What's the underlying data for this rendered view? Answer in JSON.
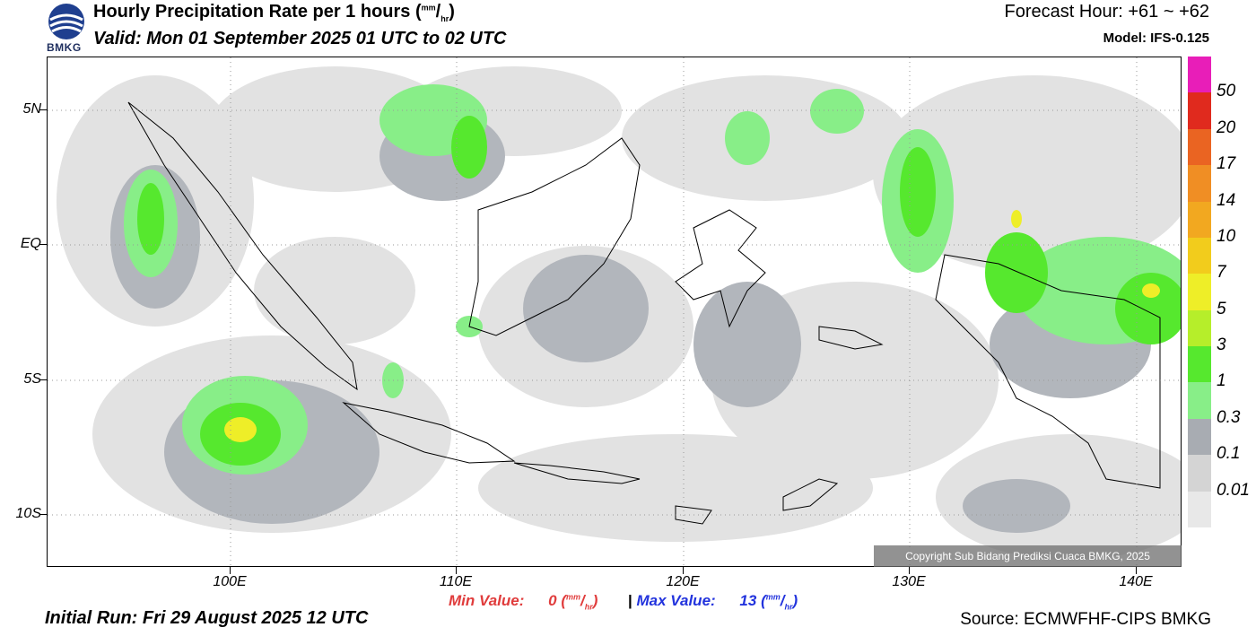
{
  "header": {
    "title_main": "Hourly Precipitation Rate per 1 hours (",
    "title_unit_num": "mm",
    "title_unit_sep": "/",
    "title_unit_den": "hr",
    "title_close": ")",
    "valid": "Valid: Mon 01 September 2025 01 UTC to 02 UTC",
    "forecast_hour": "Forecast Hour: +61 ~ +62",
    "model": "Model: IFS-0.125",
    "logo_text": "BMKG"
  },
  "axes": {
    "lat_labels": [
      "5N",
      "EQ",
      "5S",
      "10S"
    ],
    "lon_labels": [
      "100E",
      "110E",
      "120E",
      "130E",
      "140E"
    ]
  },
  "legend": {
    "labels": [
      "50",
      "20",
      "17",
      "14",
      "10",
      "7",
      "5",
      "3",
      "1",
      "0.3",
      "0.1",
      "0.01"
    ],
    "colors": [
      "#e81eb8",
      "#e02a1e",
      "#ea6422",
      "#f08e24",
      "#f2a820",
      "#f2cc1c",
      "#eeee28",
      "#b6ee2a",
      "#56e82e",
      "#88ee88",
      "#a8acb2",
      "#d4d4d4",
      "#e8e8e8"
    ]
  },
  "stats": {
    "min_label": "Min Value:",
    "min_value": "0",
    "max_label": "Max Value:",
    "max_value": "13",
    "separator": "|",
    "unit_num": "mm",
    "unit_den": "hr"
  },
  "footer": {
    "initial_run": "Initial Run: Fri 29 August 2025 12 UTC",
    "source": "Source: ECMWFHF-CIPS BMKG",
    "copyright": "Copyright Sub Bidang Prediksi Cuaca BMKG, 2025"
  }
}
